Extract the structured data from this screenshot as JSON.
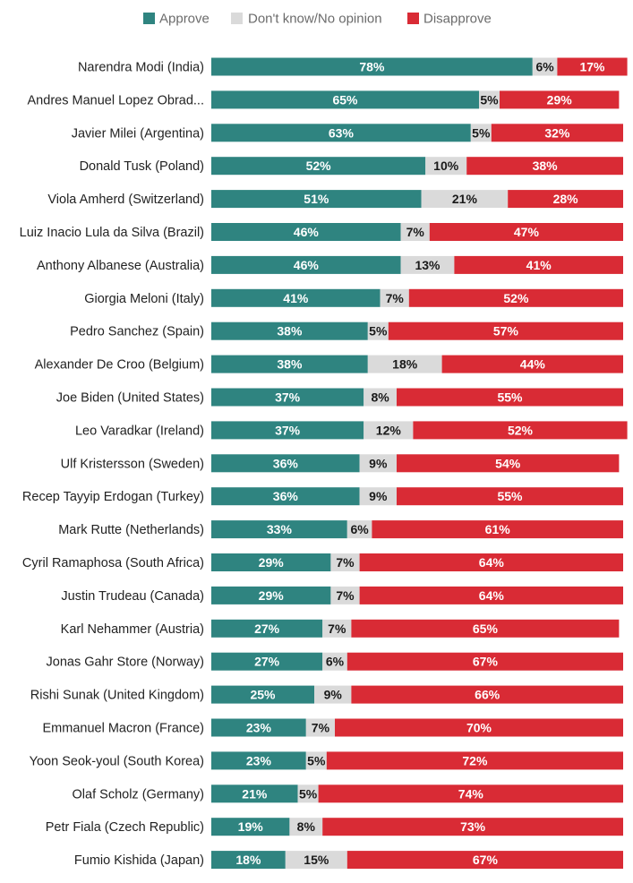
{
  "chart_data": {
    "type": "bar",
    "orientation": "horizontal",
    "stacked": true,
    "legend_position": "top",
    "grid": false,
    "xlim": [
      0,
      100
    ],
    "categories": [
      "Narendra Modi (India)",
      "Andres Manuel Lopez Obrad...",
      "Javier Milei (Argentina)",
      "Donald Tusk (Poland)",
      "Viola Amherd (Switzerland)",
      "Luiz Inacio Lula da Silva (Brazil)",
      "Anthony Albanese (Australia)",
      "Giorgia Meloni (Italy)",
      "Pedro Sanchez (Spain)",
      "Alexander De Croo (Belgium)",
      "Joe Biden (United States)",
      "Leo Varadkar (Ireland)",
      "Ulf Kristersson (Sweden)",
      "Recep Tayyip Erdogan (Turkey)",
      "Mark Rutte (Netherlands)",
      "Cyril Ramaphosa (South Africa)",
      "Justin Trudeau (Canada)",
      "Karl Nehammer (Austria)",
      "Jonas Gahr Store (Norway)",
      "Rishi Sunak (United Kingdom)",
      "Emmanuel Macron (France)",
      "Yoon Seok-youl (South Korea)",
      "Olaf Scholz (Germany)",
      "Petr Fiala (Czech Republic)",
      "Fumio Kishida (Japan)"
    ],
    "series": [
      {
        "name": "Approve",
        "color": "#2f8480",
        "label_color": "#ffffff",
        "values": [
          78,
          65,
          63,
          52,
          51,
          46,
          46,
          41,
          38,
          38,
          37,
          37,
          36,
          36,
          33,
          29,
          29,
          27,
          27,
          25,
          23,
          23,
          21,
          19,
          18
        ]
      },
      {
        "name": "Don't know/No opinion",
        "color": "#dadada",
        "label_color": "#1a1a1a",
        "values": [
          6,
          5,
          5,
          10,
          21,
          7,
          13,
          7,
          5,
          18,
          8,
          12,
          9,
          9,
          6,
          7,
          7,
          7,
          6,
          9,
          7,
          5,
          5,
          8,
          15
        ]
      },
      {
        "name": "Disapprove",
        "color": "#d92b35",
        "label_color": "#ffffff",
        "values": [
          17,
          29,
          32,
          38,
          28,
          47,
          41,
          52,
          57,
          44,
          55,
          52,
          54,
          55,
          61,
          64,
          64,
          65,
          67,
          66,
          70,
          72,
          74,
          73,
          67
        ]
      }
    ],
    "value_suffix": "%"
  }
}
